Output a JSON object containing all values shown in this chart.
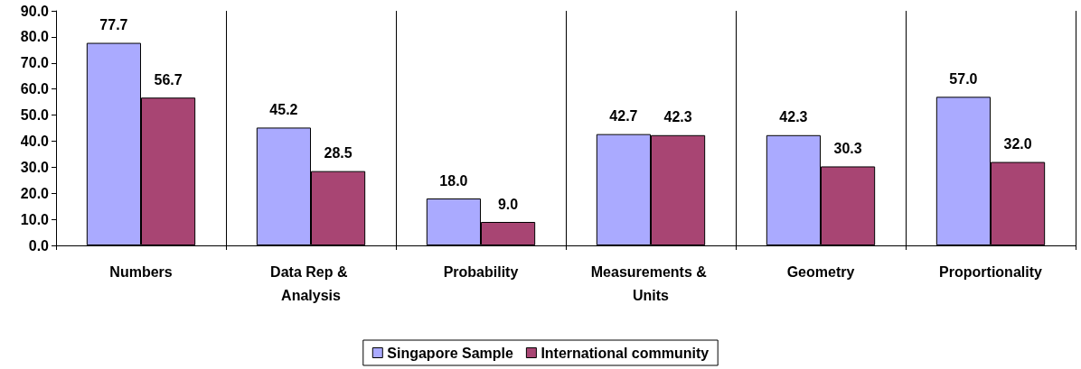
{
  "chart_data": {
    "type": "bar",
    "categories": [
      "Numbers",
      "Data Rep & Analysis",
      "Probability",
      "Measurements & Units",
      "Geometry",
      "Proportionality"
    ],
    "series": [
      {
        "name": "Singapore Sample",
        "color": "#aaaaff",
        "values": [
          77.7,
          45.2,
          18.0,
          42.7,
          42.3,
          57.0
        ],
        "value_labels": [
          "77.7",
          "45.2",
          "18.0",
          "42.7",
          "42.3",
          "57.0"
        ]
      },
      {
        "name": "International community",
        "color": "#a84573",
        "values": [
          56.7,
          28.5,
          9.0,
          42.3,
          30.3,
          32.0
        ],
        "value_labels": [
          "56.7",
          "28.5",
          "9.0",
          "42.3",
          "30.3",
          "32.0"
        ]
      }
    ],
    "ylim": [
      0,
      90
    ],
    "yticks": [
      {
        "value": 0,
        "label": "0.0"
      },
      {
        "value": 10,
        "label": "10.0"
      },
      {
        "value": 20,
        "label": "20.0"
      },
      {
        "value": 30,
        "label": "30.0"
      },
      {
        "value": 40,
        "label": "40.0"
      },
      {
        "value": 50,
        "label": "50.0"
      },
      {
        "value": 60,
        "label": "60.0"
      },
      {
        "value": 70,
        "label": "70.0"
      },
      {
        "value": 80,
        "label": "80.0"
      },
      {
        "value": 90,
        "label": "90.0"
      }
    ],
    "grid": "x",
    "legend": "bottom"
  }
}
